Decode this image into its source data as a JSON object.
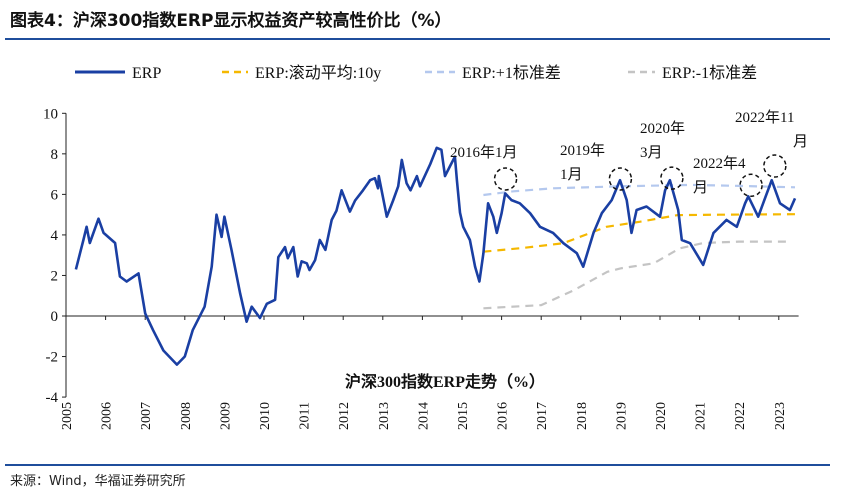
{
  "title": "图表4：沪深300指数ERP显示权益资产较高性价比（%）",
  "source": "来源：Wind，华福证券研究所",
  "chart_data": {
    "type": "line",
    "title": "沪深300指数ERP走势（%）",
    "xlabel": "",
    "ylabel": "",
    "xlim": [
      2005,
      2023.5
    ],
    "ylim": [
      -4,
      10
    ],
    "yticks": [
      -4,
      -2,
      0,
      2,
      4,
      6,
      8,
      10
    ],
    "xticks": [
      "2005",
      "2006",
      "2007",
      "2008",
      "2009",
      "2010",
      "2011",
      "2012",
      "2013",
      "2014",
      "2015",
      "2016",
      "2017",
      "2018",
      "2019",
      "2020",
      "2021",
      "2022",
      "2023"
    ],
    "grid": false,
    "legend_position": "top",
    "series": [
      {
        "name": "ERP",
        "color": "#1a3fa3",
        "style": "solid",
        "x": [
          2005.25,
          2005.44,
          2005.52,
          2005.6,
          2005.82,
          2005.95,
          2006.24,
          2006.36,
          2006.53,
          2006.83,
          2007.0,
          2007.2,
          2007.46,
          2007.8,
          2008.0,
          2008.2,
          2008.5,
          2008.68,
          2008.8,
          2008.93,
          2009.0,
          2009.18,
          2009.4,
          2009.56,
          2009.69,
          2009.9,
          2010.07,
          2010.28,
          2010.36,
          2010.53,
          2010.6,
          2010.74,
          2010.85,
          2010.95,
          2011.08,
          2011.15,
          2011.29,
          2011.41,
          2011.55,
          2011.71,
          2011.83,
          2011.96,
          2012.17,
          2012.3,
          2012.5,
          2012.68,
          2012.8,
          2012.88,
          2012.9,
          2013.1,
          2013.26,
          2013.39,
          2013.48,
          2013.6,
          2013.7,
          2013.86,
          2013.94,
          2014.2,
          2014.36,
          2014.48,
          2014.57,
          2014.7,
          2014.82,
          2014.87,
          2014.95,
          2015.03,
          2015.2,
          2015.33,
          2015.44,
          2015.54,
          2015.66,
          2015.79,
          2015.88,
          2016.0,
          2016.09,
          2016.25,
          2016.46,
          2016.72,
          2016.97,
          2017.3,
          2017.56,
          2017.9,
          2018.06,
          2018.32,
          2018.53,
          2018.78,
          2018.99,
          2019.16,
          2019.28,
          2019.41,
          2019.66,
          2020.0,
          2020.13,
          2020.25,
          2020.46,
          2020.55,
          2020.76,
          2021.09,
          2021.35,
          2021.68,
          2021.94,
          2022.15,
          2022.23,
          2022.48,
          2022.82,
          2023.03,
          2023.28,
          2023.41
        ],
        "y": [
          2.3,
          3.75,
          4.4,
          3.6,
          4.8,
          4.1,
          3.6,
          1.95,
          1.7,
          2.1,
          0.13,
          -0.7,
          -1.7,
          -2.4,
          -2.0,
          -0.7,
          0.46,
          2.43,
          5.0,
          3.9,
          4.9,
          3.26,
          1.1,
          -0.28,
          0.46,
          -0.1,
          0.6,
          0.8,
          2.9,
          3.4,
          2.85,
          3.4,
          1.95,
          2.7,
          2.6,
          2.27,
          2.76,
          3.75,
          3.26,
          4.74,
          5.2,
          6.2,
          5.15,
          5.7,
          6.2,
          6.7,
          6.8,
          6.3,
          6.9,
          4.9,
          5.7,
          6.4,
          7.7,
          6.55,
          6.2,
          6.9,
          6.4,
          7.5,
          8.3,
          8.2,
          6.9,
          7.4,
          7.86,
          6.7,
          5.1,
          4.4,
          3.75,
          2.43,
          1.7,
          3.1,
          5.56,
          4.9,
          4.1,
          5.07,
          6.05,
          5.72,
          5.56,
          5.07,
          4.4,
          4.1,
          3.59,
          3.1,
          2.43,
          4.1,
          5.07,
          5.72,
          6.7,
          5.72,
          4.1,
          5.23,
          5.4,
          4.9,
          6.2,
          6.7,
          5.23,
          3.75,
          3.59,
          2.52,
          4.1,
          4.74,
          4.4,
          5.56,
          5.9,
          4.9,
          6.7,
          5.56,
          5.23,
          5.8
        ]
      },
      {
        "name": "ERP:滚动平均:10y",
        "color": "#f5b800",
        "style": "dashed",
        "x": [
          2015.54,
          2016.5,
          2017.56,
          2018.65,
          2019.5,
          2020.45,
          2021.5,
          2023.41
        ],
        "y": [
          3.17,
          3.35,
          3.59,
          4.4,
          4.65,
          4.98,
          5.0,
          5.02
        ]
      },
      {
        "name": "ERP:+1标准差",
        "color": "#b4c8ee",
        "style": "dashed",
        "x": [
          2015.54,
          2016.3,
          2017.3,
          2019.0,
          2020.8,
          2022.0,
          2023.41
        ],
        "y": [
          5.97,
          6.15,
          6.3,
          6.4,
          6.47,
          6.42,
          6.35
        ]
      },
      {
        "name": "ERP:-1标准差",
        "color": "#c4c4c4",
        "style": "dashed",
        "x": [
          2015.54,
          2017.0,
          2017.83,
          2018.67,
          2019.0,
          2019.84,
          2020.5,
          2021.1,
          2022.0,
          2023.3
        ],
        "y": [
          0.38,
          0.54,
          1.28,
          2.18,
          2.35,
          2.6,
          3.34,
          3.6,
          3.67,
          3.67
        ]
      }
    ],
    "annotations": [
      {
        "lines": [
          "2016年1月"
        ],
        "x": 2016.1,
        "y": 6.76
      },
      {
        "lines": [
          "2019年",
          "1月"
        ],
        "x": 2019.0,
        "y": 6.76
      },
      {
        "lines": [
          "2020年",
          "3月"
        ],
        "x": 2020.3,
        "y": 6.8
      },
      {
        "lines": [
          "2022年4",
          "月"
        ],
        "x": 2022.3,
        "y": 6.45
      },
      {
        "lines": [
          "2022年11",
          "月"
        ],
        "x": 2022.9,
        "y": 7.4
      }
    ]
  }
}
